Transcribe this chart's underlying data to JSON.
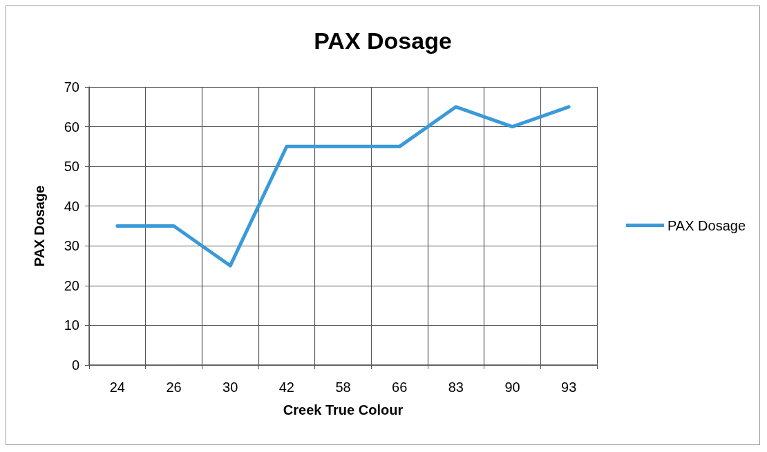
{
  "chart_data": {
    "type": "line",
    "title": "PAX Dosage",
    "xlabel": "Creek True Colour",
    "ylabel": "PAX Dosage",
    "categories": [
      "24",
      "26",
      "30",
      "42",
      "58",
      "66",
      "83",
      "90",
      "93"
    ],
    "series": [
      {
        "name": "PAX Dosage",
        "color": "#3a9ad9",
        "values": [
          35,
          35,
          25,
          55,
          55,
          55,
          65,
          60,
          65
        ]
      }
    ],
    "ylim": [
      0,
      70
    ],
    "yticks": [
      0,
      10,
      20,
      30,
      40,
      50,
      60,
      70
    ],
    "grid": true,
    "legend": "right",
    "marker": "none",
    "line_style": "solid"
  }
}
